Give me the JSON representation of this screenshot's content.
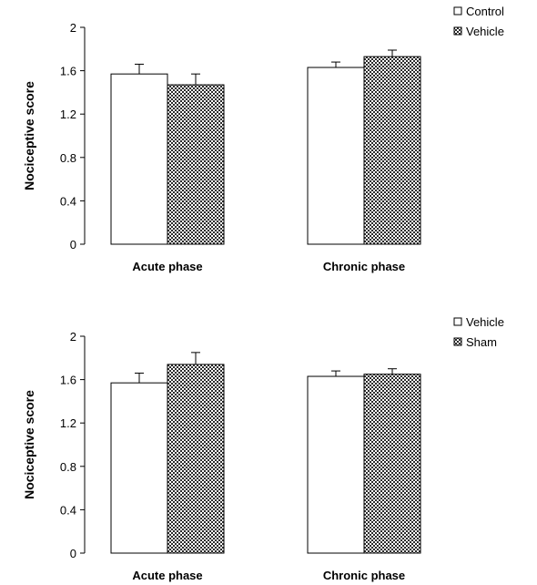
{
  "chart_data": [
    {
      "type": "bar",
      "title": "",
      "xlabel": "",
      "ylabel": "Nociceptive score",
      "ylim": [
        0,
        2
      ],
      "yticks": [
        "0",
        "0.4",
        "0.8",
        "1.2",
        "1.6",
        "2"
      ],
      "categories": [
        "Acute phase",
        "Chronic phase"
      ],
      "legend_position": "top-right",
      "error_bars": true,
      "series": [
        {
          "name": "Control",
          "fill": "white",
          "values": [
            1.57,
            1.63
          ],
          "errors": [
            0.09,
            0.05
          ]
        },
        {
          "name": "Vehicle",
          "fill": "checkered",
          "values": [
            1.47,
            1.73
          ],
          "errors": [
            0.1,
            0.06
          ]
        }
      ]
    },
    {
      "type": "bar",
      "title": "",
      "xlabel": "",
      "ylabel": "Nociceptive score",
      "ylim": [
        0,
        2
      ],
      "yticks": [
        "0",
        "0.4",
        "0.8",
        "1.2",
        "1.6",
        "2"
      ],
      "categories": [
        "Acute phase",
        "Chronic phase"
      ],
      "legend_position": "top-right",
      "error_bars": true,
      "series": [
        {
          "name": "Vehicle",
          "fill": "white",
          "values": [
            1.57,
            1.63
          ],
          "errors": [
            0.09,
            0.05
          ]
        },
        {
          "name": "Sham",
          "fill": "checkered",
          "values": [
            1.74,
            1.65
          ],
          "errors": [
            0.11,
            0.05
          ]
        }
      ]
    }
  ]
}
